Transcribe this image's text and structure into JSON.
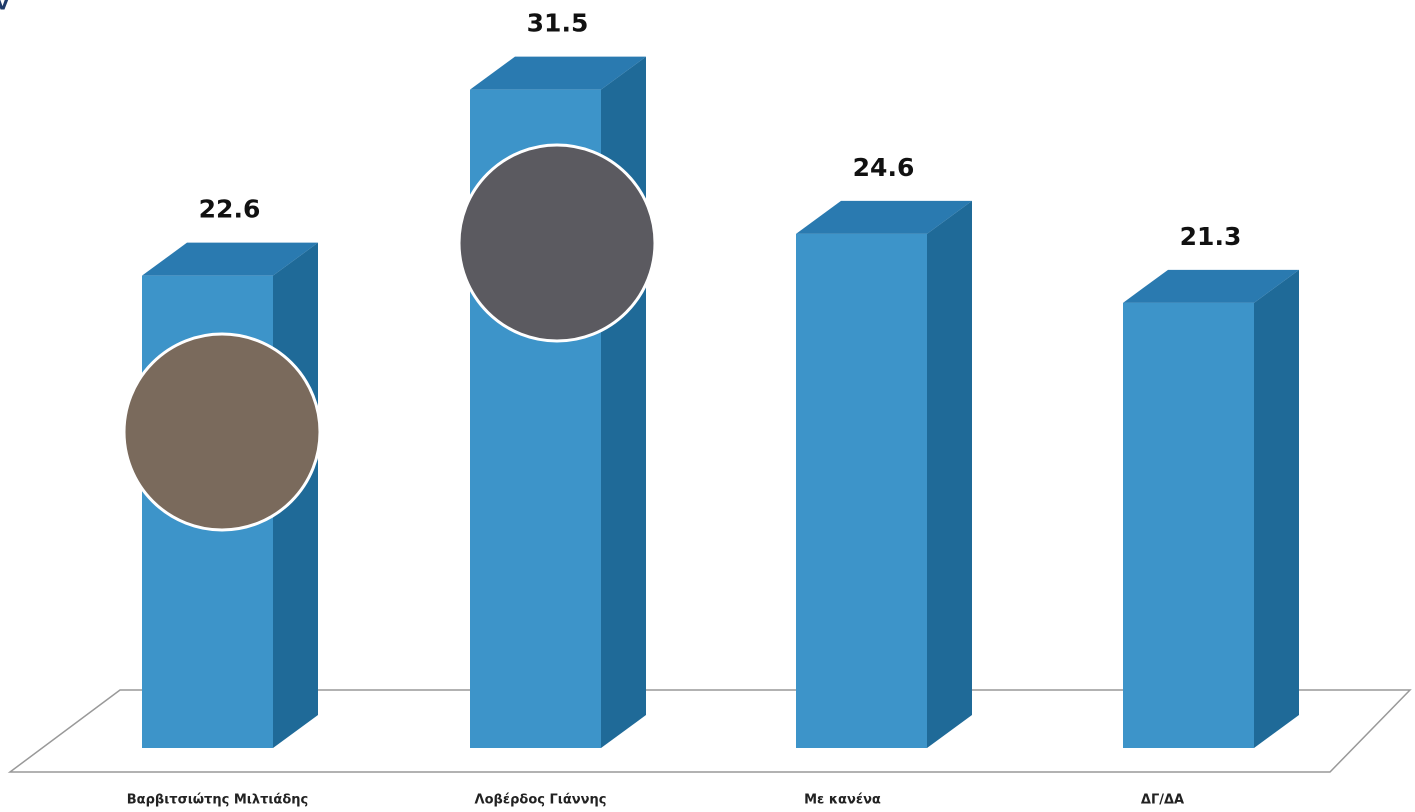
{
  "chart_data": {
    "type": "bar3d",
    "title": "v",
    "categories": [
      "Βαρβιτσιώτης Μιλτιάδης",
      "Λοβέρδος Γιάννης",
      "Με κανένα",
      "ΔΓ/ΔΑ"
    ],
    "values": [
      22.6,
      31.5,
      24.6,
      21.3
    ],
    "color": "#3d94c9"
  }
}
